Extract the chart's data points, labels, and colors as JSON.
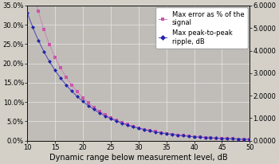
{
  "x_start": 10,
  "x_end": 50,
  "xlabel": "Dynamic range below measurement level, dB",
  "xlim": [
    10,
    50
  ],
  "ylim_left": [
    0.0,
    0.35
  ],
  "ylim_right": [
    0.0,
    6.0
  ],
  "yticks_left": [
    0.0,
    0.05,
    0.1,
    0.15,
    0.2,
    0.25,
    0.3,
    0.35
  ],
  "ytick_labels_left": [
    "0.0%",
    "5.0%",
    "10.0%",
    "15.0%",
    "20.0%",
    "25.0%",
    "30.0%",
    "35.0%"
  ],
  "yticks_right": [
    0.0,
    1.0,
    2.0,
    3.0,
    4.0,
    5.0,
    6.0
  ],
  "ytick_labels_right": [
    "0.0000",
    "1.0000",
    "2.0000",
    "3.0000",
    "4.0000",
    "5.0000",
    "6.0000"
  ],
  "xticks": [
    10,
    15,
    20,
    25,
    30,
    35,
    40,
    45,
    50
  ],
  "legend_entries": [
    "Max error as % of the\nsignal",
    "Max peak-to-peak\nripple, dB"
  ],
  "line1_color": "#cc88bb",
  "line2_color": "#5555bb",
  "marker1_color": "#cc55aa",
  "marker2_color": "#2222aa",
  "bg_color": "#d4d0c8",
  "plot_bg_color": "#c0bdb8",
  "grid_color": "#e8e8e8",
  "xlabel_fontsize": 7,
  "tick_fontsize": 6,
  "legend_fontsize": 6
}
